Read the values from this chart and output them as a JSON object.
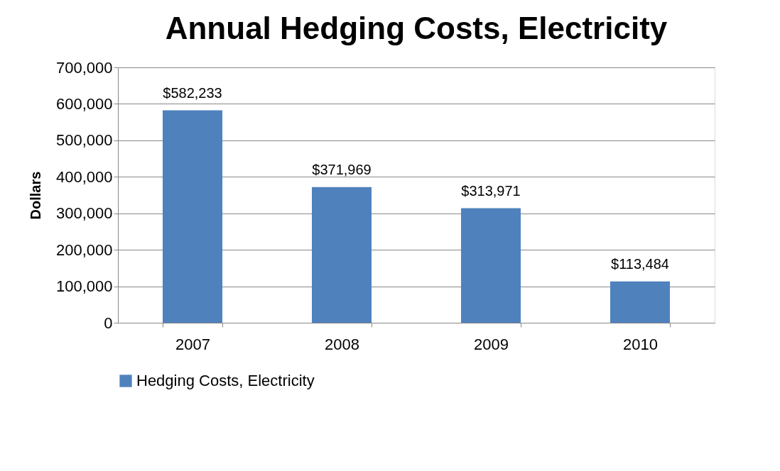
{
  "chart_data": {
    "type": "bar",
    "title": "Annual Hedging Costs, Electricity",
    "ylabel": "Dollars",
    "categories": [
      "2007",
      "2008",
      "2009",
      "2010"
    ],
    "series": [
      {
        "name": "Hedging Costs, Electricity",
        "color": "#4f81bd",
        "values": [
          582233,
          371969,
          313971,
          113484
        ],
        "value_labels": [
          "$582,233",
          "$371,969",
          "$313,971",
          "$113,484"
        ]
      }
    ],
    "ylim": [
      0,
      700000
    ],
    "yticks": [
      {
        "value": 0,
        "label": "0"
      },
      {
        "value": 100000,
        "label": "100,000"
      },
      {
        "value": 200000,
        "label": "200,000"
      },
      {
        "value": 300000,
        "label": "300,000"
      },
      {
        "value": 400000,
        "label": "400,000"
      },
      {
        "value": 500000,
        "label": "500,000"
      },
      {
        "value": 600000,
        "label": "600,000"
      },
      {
        "value": 700000,
        "label": "700,000"
      }
    ],
    "grid": "y",
    "legend": "bottom"
  }
}
